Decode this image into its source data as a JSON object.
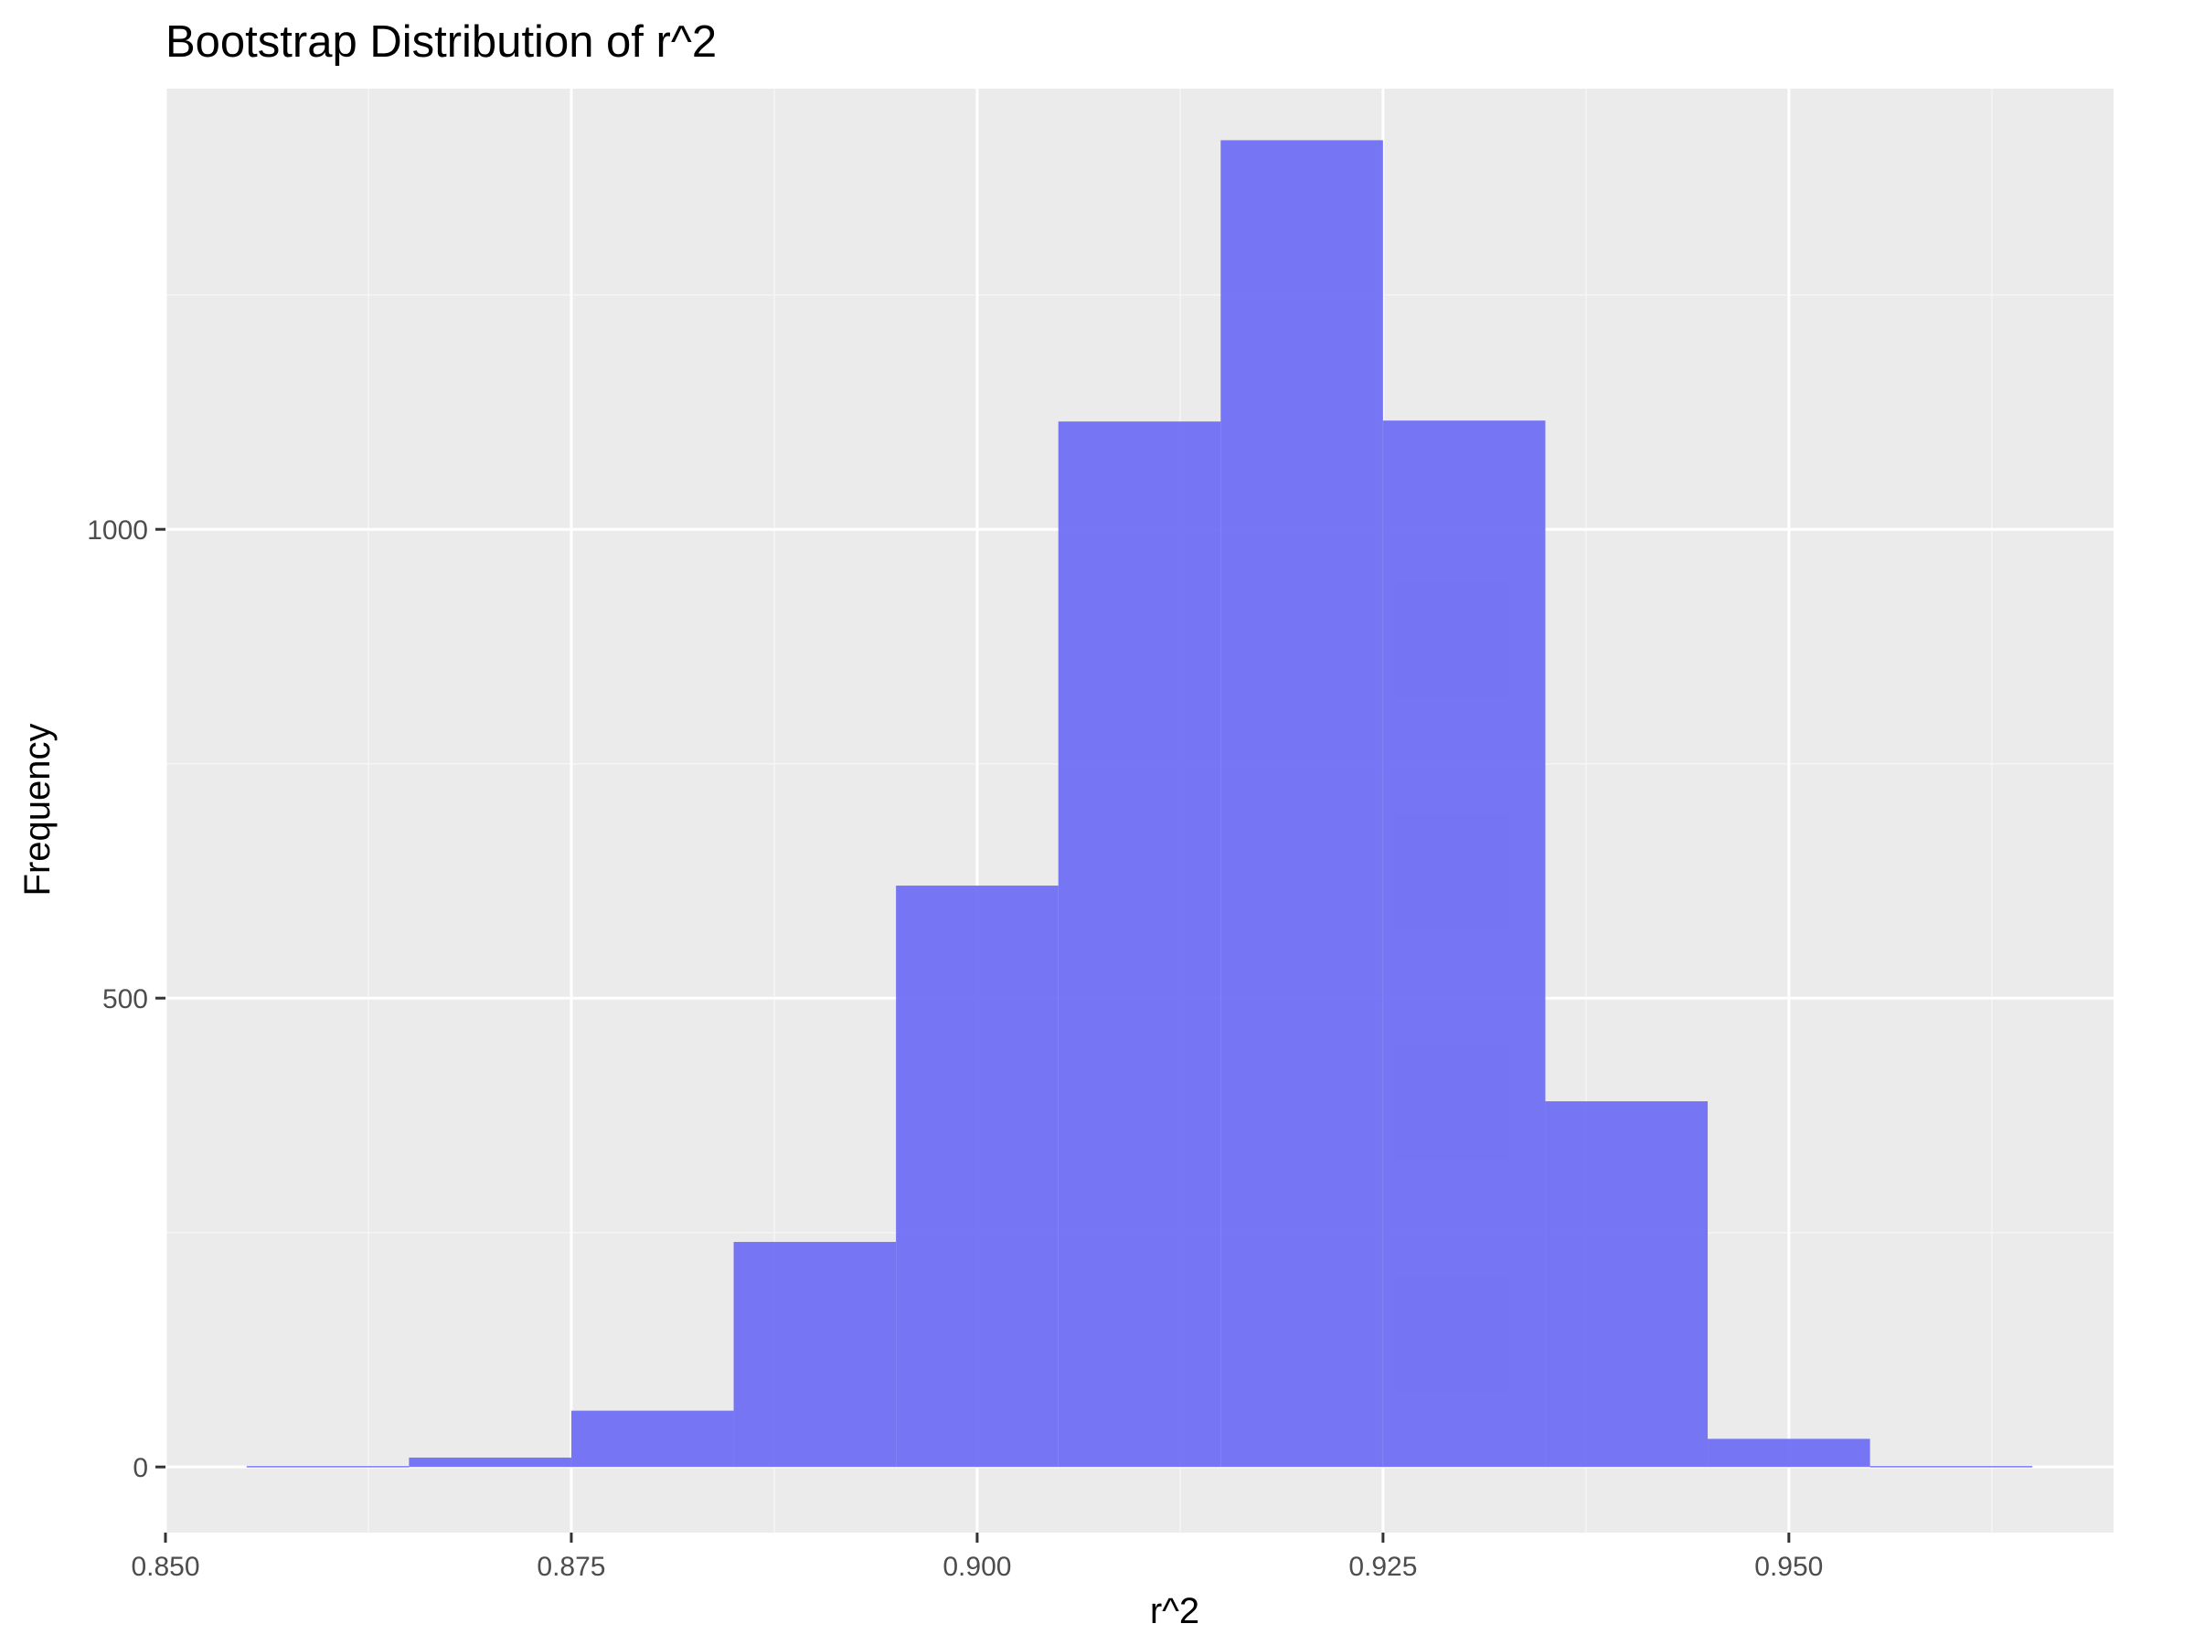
{
  "chart_data": {
    "type": "bar",
    "title": "Bootstrap Distribution of r^2",
    "xlabel": "r^2",
    "ylabel": "Frequency",
    "xlim": [
      0.85,
      0.97
    ],
    "ylim": [
      -70,
      1470
    ],
    "x_ticks": [
      0.85,
      0.875,
      0.9,
      0.925,
      0.95
    ],
    "x_tick_labels": [
      "0.850",
      "0.875",
      "0.900",
      "0.925",
      "0.950"
    ],
    "y_ticks": [
      0,
      500,
      1000
    ],
    "y_tick_labels": [
      "0",
      "500",
      "1000"
    ],
    "bin_width": 0.01,
    "bins": [
      {
        "x0": 0.855,
        "x1": 0.865,
        "count": 1
      },
      {
        "x0": 0.865,
        "x1": 0.875,
        "count": 10
      },
      {
        "x0": 0.875,
        "x1": 0.885,
        "count": 60
      },
      {
        "x0": 0.885,
        "x1": 0.895,
        "count": 240
      },
      {
        "x0": 0.895,
        "x1": 0.905,
        "count": 620
      },
      {
        "x0": 0.905,
        "x1": 0.915,
        "count": 1115
      },
      {
        "x0": 0.915,
        "x1": 0.925,
        "count": 1415
      },
      {
        "x0": 0.925,
        "x1": 0.935,
        "count": 1116
      },
      {
        "x0": 0.935,
        "x1": 0.945,
        "count": 390
      },
      {
        "x0": 0.945,
        "x1": 0.955,
        "count": 30
      },
      {
        "x0": 0.955,
        "x1": 0.965,
        "count": 1
      }
    ],
    "grid": true,
    "legend": "none",
    "colors": {
      "bar_fill": "#6B6BF5",
      "panel_background": "#EBEBEB",
      "grid_major": "#FFFFFF",
      "grid_minor": "#F5F5F5",
      "tick_text": "#4D4D4D"
    }
  }
}
